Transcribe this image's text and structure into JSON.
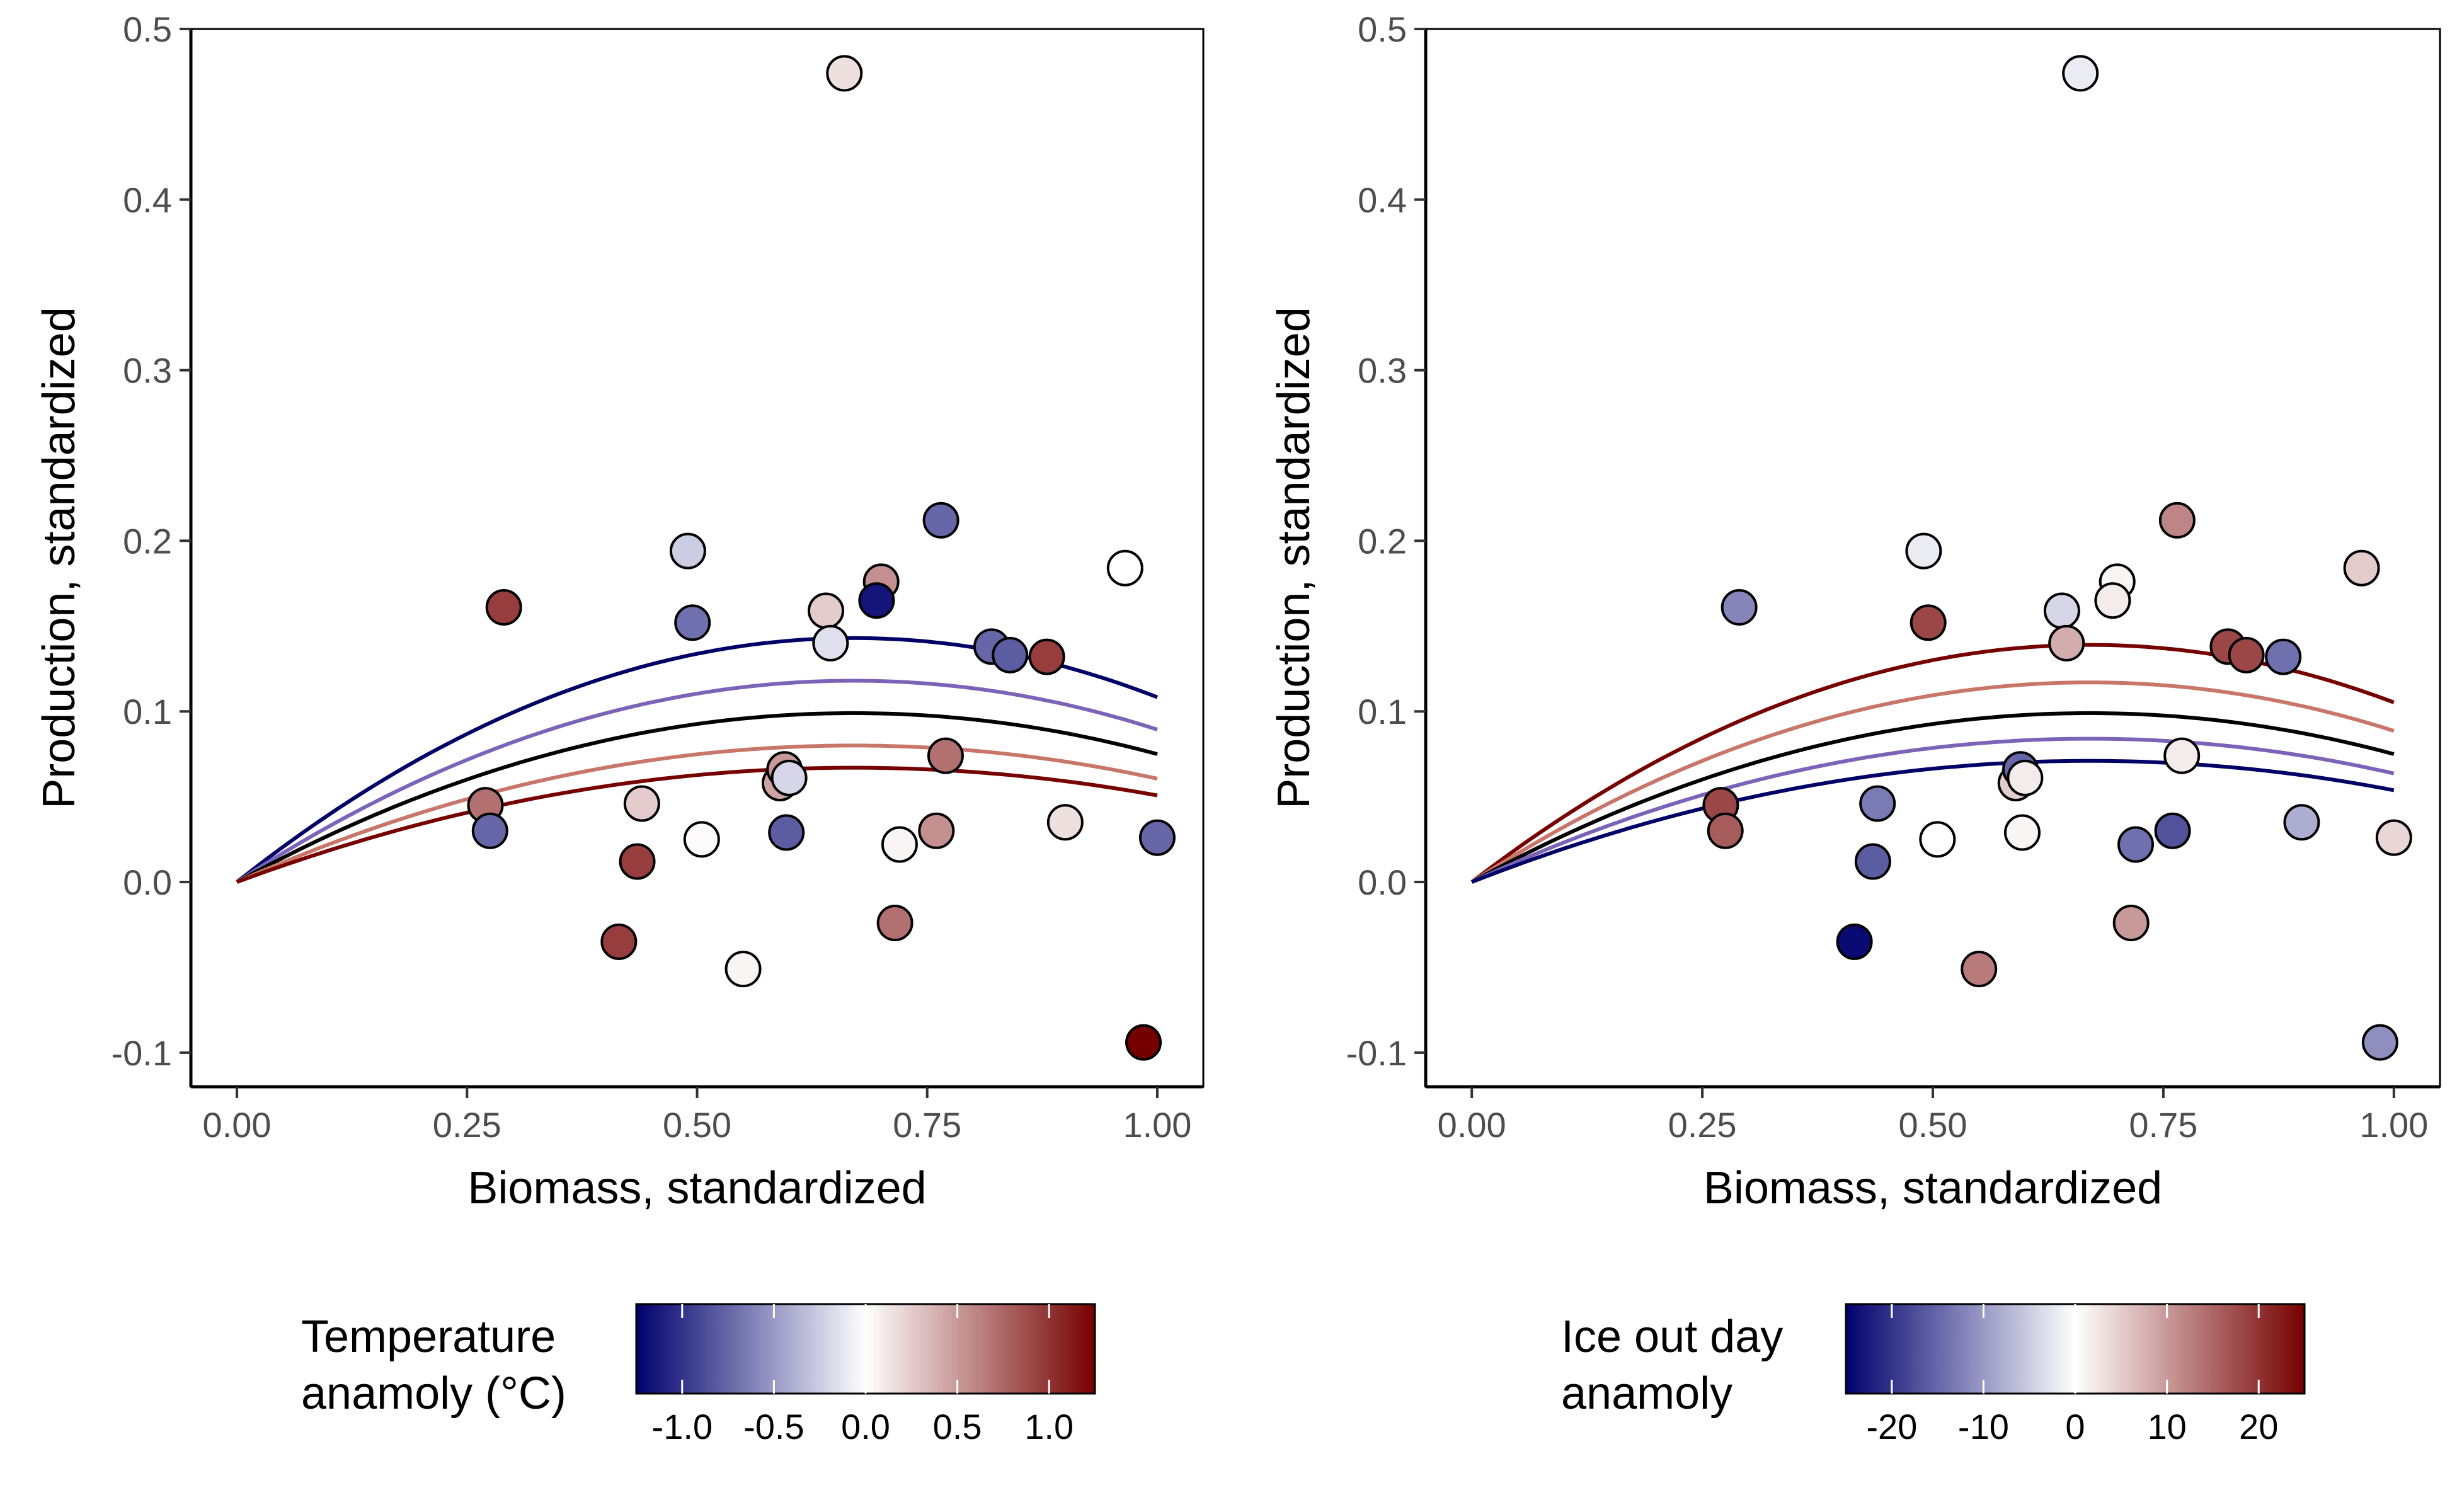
{
  "chart_data": [
    {
      "type": "scatter",
      "xlabel": "Biomass, standardized",
      "ylabel": "Production, standardized",
      "xlim": [
        -0.05,
        1.05
      ],
      "ylim": [
        -0.12,
        0.5
      ],
      "x_ticks": [
        0,
        0.25,
        0.5,
        0.75,
        1
      ],
      "x_tick_labels": [
        "0.00",
        "0.25",
        "0.50",
        "0.75",
        "1.00"
      ],
      "y_ticks": [
        -0.1,
        0,
        0.1,
        0.2,
        0.3,
        0.4,
        0.5
      ],
      "y_tick_labels": [
        "-0.1",
        "0.0",
        "0.1",
        "0.2",
        "0.3",
        "0.4",
        "0.5"
      ],
      "legend": {
        "title_lines": [
          "Temperature",
          "anamoly (°C)"
        ],
        "position": "bottom",
        "range": [
          -1.25,
          1.25
        ],
        "ticks": [
          -1,
          -0.5,
          0,
          0.5,
          1
        ],
        "tick_labels": [
          "-1.0",
          "-0.5",
          "0.0",
          "0.5",
          "1.0"
        ]
      },
      "colors": {
        "low": "#00006e",
        "mid": "#ffffff",
        "high": "#760000"
      },
      "points": [
        {
          "x": 0.66,
          "y": 0.474,
          "c": 0.15
        },
        {
          "x": 0.29,
          "y": 0.161,
          "c": 0.95
        },
        {
          "x": 0.49,
          "y": 0.194,
          "c": -0.25
        },
        {
          "x": 0.495,
          "y": 0.152,
          "c": -0.7
        },
        {
          "x": 0.765,
          "y": 0.212,
          "c": -0.75
        },
        {
          "x": 0.7,
          "y": 0.176,
          "c": 0.55
        },
        {
          "x": 0.695,
          "y": 0.165,
          "c": -1.15
        },
        {
          "x": 0.64,
          "y": 0.159,
          "c": 0.25
        },
        {
          "x": 0.645,
          "y": 0.14,
          "c": -0.15
        },
        {
          "x": 0.965,
          "y": 0.184,
          "c": 0.0
        },
        {
          "x": 0.82,
          "y": 0.138,
          "c": -0.75
        },
        {
          "x": 0.84,
          "y": 0.133,
          "c": -0.8
        },
        {
          "x": 0.88,
          "y": 0.132,
          "c": 0.95
        },
        {
          "x": 0.27,
          "y": 0.045,
          "c": 0.7
        },
        {
          "x": 0.275,
          "y": 0.03,
          "c": -0.75
        },
        {
          "x": 0.44,
          "y": 0.046,
          "c": 0.25
        },
        {
          "x": 0.435,
          "y": 0.012,
          "c": 0.95
        },
        {
          "x": 0.415,
          "y": -0.035,
          "c": 0.95
        },
        {
          "x": 0.505,
          "y": 0.025,
          "c": 0.02
        },
        {
          "x": 0.55,
          "y": -0.051,
          "c": 0.05
        },
        {
          "x": 0.59,
          "y": 0.058,
          "c": 0.45
        },
        {
          "x": 0.595,
          "y": 0.066,
          "c": 0.5
        },
        {
          "x": 0.6,
          "y": 0.061,
          "c": -0.2
        },
        {
          "x": 0.597,
          "y": 0.029,
          "c": -0.8
        },
        {
          "x": 0.72,
          "y": 0.022,
          "c": 0.05
        },
        {
          "x": 0.715,
          "y": -0.024,
          "c": 0.7
        },
        {
          "x": 0.76,
          "y": 0.03,
          "c": 0.55
        },
        {
          "x": 0.77,
          "y": 0.074,
          "c": 0.7
        },
        {
          "x": 0.9,
          "y": 0.035,
          "c": 0.15
        },
        {
          "x": 1.0,
          "y": 0.026,
          "c": -0.75
        },
        {
          "x": 0.985,
          "y": -0.094,
          "c": 1.25
        }
      ],
      "curves": [
        {
          "peak": 0.143,
          "color": "#000066"
        },
        {
          "peak": 0.118,
          "color": "#7b64b8"
        },
        {
          "peak": 0.099,
          "color": "#000000"
        },
        {
          "peak": 0.08,
          "color": "#c8766a"
        },
        {
          "peak": 0.067,
          "color": "#760000"
        }
      ]
    },
    {
      "type": "scatter",
      "xlabel": "Biomass, standardized",
      "ylabel": "Production, standardized",
      "xlim": [
        -0.05,
        1.05
      ],
      "ylim": [
        -0.12,
        0.5
      ],
      "x_ticks": [
        0,
        0.25,
        0.5,
        0.75,
        1
      ],
      "x_tick_labels": [
        "0.00",
        "0.25",
        "0.50",
        "0.75",
        "1.00"
      ],
      "y_ticks": [
        -0.1,
        0,
        0.1,
        0.2,
        0.3,
        0.4,
        0.5
      ],
      "y_tick_labels": [
        "-0.1",
        "0.0",
        "0.1",
        "0.2",
        "0.3",
        "0.4",
        "0.5"
      ],
      "legend": {
        "title_lines": [
          "Ice out day",
          "anamoly"
        ],
        "position": "bottom",
        "range": [
          -25,
          25
        ],
        "ticks": [
          -20,
          -10,
          0,
          10,
          20
        ],
        "tick_labels": [
          "-20",
          "-10",
          "0",
          "10",
          "20"
        ]
      },
      "colors": {
        "low": "#00006e",
        "mid": "#ffffff",
        "high": "#760000"
      },
      "points": [
        {
          "x": 0.66,
          "y": 0.474,
          "c": -2
        },
        {
          "x": 0.29,
          "y": 0.161,
          "c": -12
        },
        {
          "x": 0.49,
          "y": 0.194,
          "c": -2
        },
        {
          "x": 0.495,
          "y": 0.152,
          "c": 18
        },
        {
          "x": 0.765,
          "y": 0.212,
          "c": 12
        },
        {
          "x": 0.7,
          "y": 0.176,
          "c": 1
        },
        {
          "x": 0.695,
          "y": 0.165,
          "c": 2
        },
        {
          "x": 0.64,
          "y": 0.159,
          "c": -4
        },
        {
          "x": 0.645,
          "y": 0.14,
          "c": 8
        },
        {
          "x": 0.965,
          "y": 0.184,
          "c": 5
        },
        {
          "x": 0.82,
          "y": 0.138,
          "c": 18
        },
        {
          "x": 0.84,
          "y": 0.133,
          "c": 18
        },
        {
          "x": 0.88,
          "y": 0.132,
          "c": -14
        },
        {
          "x": 0.27,
          "y": 0.045,
          "c": 18
        },
        {
          "x": 0.275,
          "y": 0.03,
          "c": 16
        },
        {
          "x": 0.44,
          "y": 0.046,
          "c": -13
        },
        {
          "x": 0.435,
          "y": 0.012,
          "c": -16
        },
        {
          "x": 0.415,
          "y": -0.035,
          "c": -24
        },
        {
          "x": 0.505,
          "y": 0.025,
          "c": 0
        },
        {
          "x": 0.55,
          "y": -0.051,
          "c": 13
        },
        {
          "x": 0.59,
          "y": 0.058,
          "c": 5
        },
        {
          "x": 0.595,
          "y": 0.066,
          "c": -15
        },
        {
          "x": 0.6,
          "y": 0.061,
          "c": 2
        },
        {
          "x": 0.597,
          "y": 0.029,
          "c": 1
        },
        {
          "x": 0.72,
          "y": 0.022,
          "c": -14
        },
        {
          "x": 0.715,
          "y": -0.024,
          "c": 10
        },
        {
          "x": 0.76,
          "y": 0.03,
          "c": -17
        },
        {
          "x": 0.77,
          "y": 0.074,
          "c": 2
        },
        {
          "x": 0.9,
          "y": 0.035,
          "c": -8
        },
        {
          "x": 1.0,
          "y": 0.026,
          "c": 4
        },
        {
          "x": 0.985,
          "y": -0.094,
          "c": -11
        }
      ],
      "curves": [
        {
          "peak": 0.139,
          "color": "#760000"
        },
        {
          "peak": 0.117,
          "color": "#c8766a"
        },
        {
          "peak": 0.099,
          "color": "#000000"
        },
        {
          "peak": 0.084,
          "color": "#7b64b8"
        },
        {
          "peak": 0.071,
          "color": "#000066"
        }
      ]
    }
  ]
}
